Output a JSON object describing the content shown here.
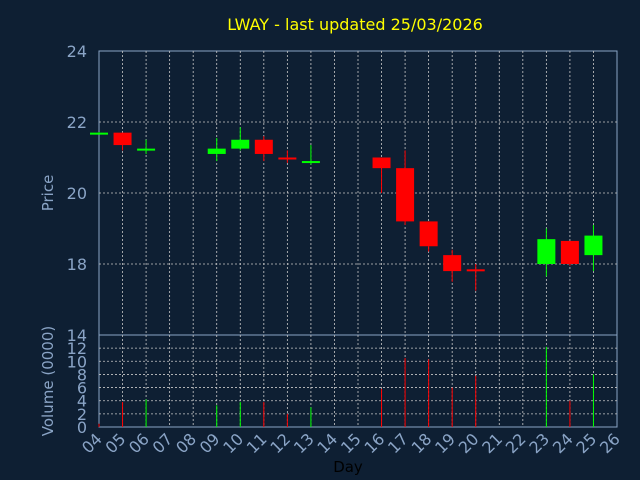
{
  "chart_data": [
    {
      "type": "candlestick",
      "title": "LWAY - last updated 25/03/2026",
      "ylabel": "Price",
      "ylim": [
        16,
        24
      ],
      "yticks": [
        18,
        20,
        22,
        24
      ],
      "grid": true,
      "candles": [
        {
          "day": "04",
          "open": 21.7,
          "high": 21.72,
          "low": 21.68,
          "close": 21.7
        },
        {
          "day": "05",
          "open": 21.7,
          "high": 21.7,
          "low": 21.2,
          "close": 21.35
        },
        {
          "day": "06",
          "open": 21.2,
          "high": 21.5,
          "low": 21.1,
          "close": 21.25
        },
        {
          "day": "09",
          "open": 21.1,
          "high": 21.55,
          "low": 20.9,
          "close": 21.25
        },
        {
          "day": "10",
          "open": 21.25,
          "high": 21.85,
          "low": 21.2,
          "close": 21.5
        },
        {
          "day": "11",
          "open": 21.5,
          "high": 21.6,
          "low": 20.9,
          "close": 21.1
        },
        {
          "day": "12",
          "open": 21.0,
          "high": 21.2,
          "low": 20.85,
          "close": 20.95
        },
        {
          "day": "13",
          "open": 20.85,
          "high": 21.35,
          "low": 20.8,
          "close": 20.9
        },
        {
          "day": "16",
          "open": 21.0,
          "high": 21.0,
          "low": 20.0,
          "close": 20.7
        },
        {
          "day": "17",
          "open": 20.7,
          "high": 21.2,
          "low": 19.1,
          "close": 19.2
        },
        {
          "day": "18",
          "open": 19.2,
          "high": 19.2,
          "low": 18.35,
          "close": 18.5
        },
        {
          "day": "19",
          "open": 18.25,
          "high": 18.4,
          "low": 17.5,
          "close": 17.8
        },
        {
          "day": "20",
          "open": 17.85,
          "high": 18.0,
          "low": 17.25,
          "close": 17.8
        },
        {
          "day": "23",
          "open": 18.0,
          "high": 19.0,
          "low": 17.65,
          "close": 18.7
        },
        {
          "day": "24",
          "open": 18.65,
          "high": 18.65,
          "low": 17.95,
          "close": 18.0
        },
        {
          "day": "25",
          "open": 18.25,
          "high": 19.1,
          "low": 17.8,
          "close": 18.8
        }
      ]
    },
    {
      "type": "bar",
      "ylabel": "Volume (0000)",
      "ylim": [
        0,
        14
      ],
      "yticks": [
        0,
        2,
        4,
        6,
        8,
        10,
        12,
        14
      ],
      "xlabel": "Day",
      "xticks": [
        "04",
        "05",
        "06",
        "07",
        "08",
        "09",
        "10",
        "11",
        "12",
        "13",
        "14",
        "15",
        "16",
        "17",
        "18",
        "19",
        "20",
        "21",
        "22",
        "23",
        "24",
        "25",
        "26"
      ],
      "grid": true,
      "values": [
        {
          "day": "04",
          "volume": 0.5,
          "direction": "down"
        },
        {
          "day": "05",
          "volume": 3.8,
          "direction": "down"
        },
        {
          "day": "06",
          "volume": 4.2,
          "direction": "up"
        },
        {
          "day": "09",
          "volume": 3.3,
          "direction": "up"
        },
        {
          "day": "10",
          "volume": 3.8,
          "direction": "up"
        },
        {
          "day": "11",
          "volume": 3.8,
          "direction": "down"
        },
        {
          "day": "12",
          "volume": 2.0,
          "direction": "down"
        },
        {
          "day": "13",
          "volume": 3.0,
          "direction": "up"
        },
        {
          "day": "16",
          "volume": 5.8,
          "direction": "down"
        },
        {
          "day": "17",
          "volume": 10.5,
          "direction": "down"
        },
        {
          "day": "18",
          "volume": 10.3,
          "direction": "down"
        },
        {
          "day": "19",
          "volume": 6.0,
          "direction": "down"
        },
        {
          "day": "20",
          "volume": 7.8,
          "direction": "down"
        },
        {
          "day": "23",
          "volume": 12.2,
          "direction": "up"
        },
        {
          "day": "24",
          "volume": 4.0,
          "direction": "down"
        },
        {
          "day": "25",
          "volume": 8.0,
          "direction": "up"
        }
      ]
    }
  ],
  "colors": {
    "background": "#0e1f33",
    "axis_text": "#8aa4c6",
    "title": "#ffff00",
    "up": "#00ff00",
    "down": "#ff0000",
    "grid": "#c8c8c8",
    "xlabel_text": "#000000"
  }
}
